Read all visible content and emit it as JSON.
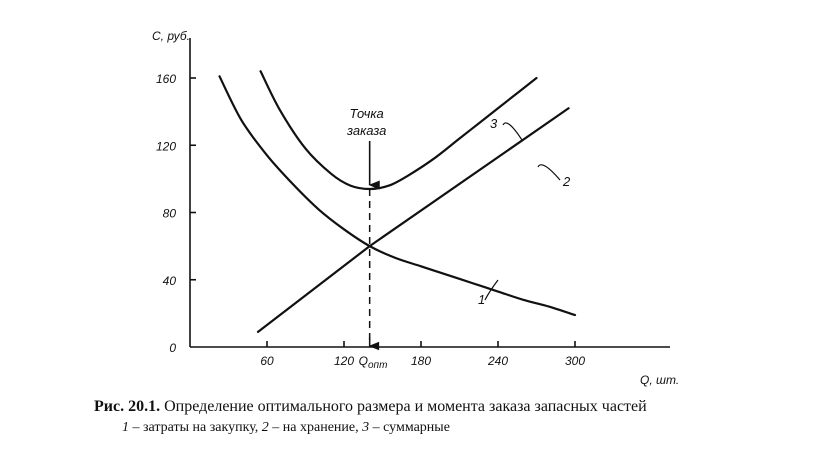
{
  "chart_data": {
    "type": "line",
    "ylabel": "C, руб.",
    "xlabel": "Q, шт.",
    "xlim": [
      0,
      310
    ],
    "ylim": [
      0,
      170
    ],
    "x_ticks": [
      60,
      120,
      180,
      240,
      300
    ],
    "y_ticks": [
      0,
      40,
      80,
      120,
      160
    ],
    "q_opt_label": "Q",
    "q_opt_sub": "опт",
    "q_opt_value": 140,
    "series": [
      {
        "name": "1",
        "x": [
          23,
          40,
          60,
          80,
          100,
          120,
          140,
          160,
          180,
          200,
          220,
          240,
          260,
          280,
          300
        ],
        "y": [
          161,
          135,
          114,
          97,
          82,
          70,
          60,
          53,
          48,
          43,
          38,
          33,
          28,
          24,
          19
        ]
      },
      {
        "name": "2",
        "x": [
          53,
          140,
          295
        ],
        "y": [
          9,
          60,
          142
        ]
      },
      {
        "name": "3",
        "x": [
          55,
          70,
          90,
          110,
          125,
          140,
          155,
          170,
          190,
          210,
          230,
          250,
          270
        ],
        "y": [
          164,
          141,
          118,
          103,
          96,
          94,
          96,
          102,
          112,
          124,
          136,
          148,
          160
        ]
      }
    ],
    "annotation": {
      "lines": [
        "Точка",
        "заказа"
      ],
      "x": 140,
      "y": 94
    }
  },
  "caption": {
    "prefix": "Рис. 20.1.",
    "title": "Определение оптимального размера и момента заказа запасных частей",
    "legend": [
      {
        "num": "1",
        "text": " – затраты на закупку, "
      },
      {
        "num": "2",
        "text": " – на хранение, "
      },
      {
        "num": "3",
        "text": " – суммарные"
      }
    ]
  }
}
